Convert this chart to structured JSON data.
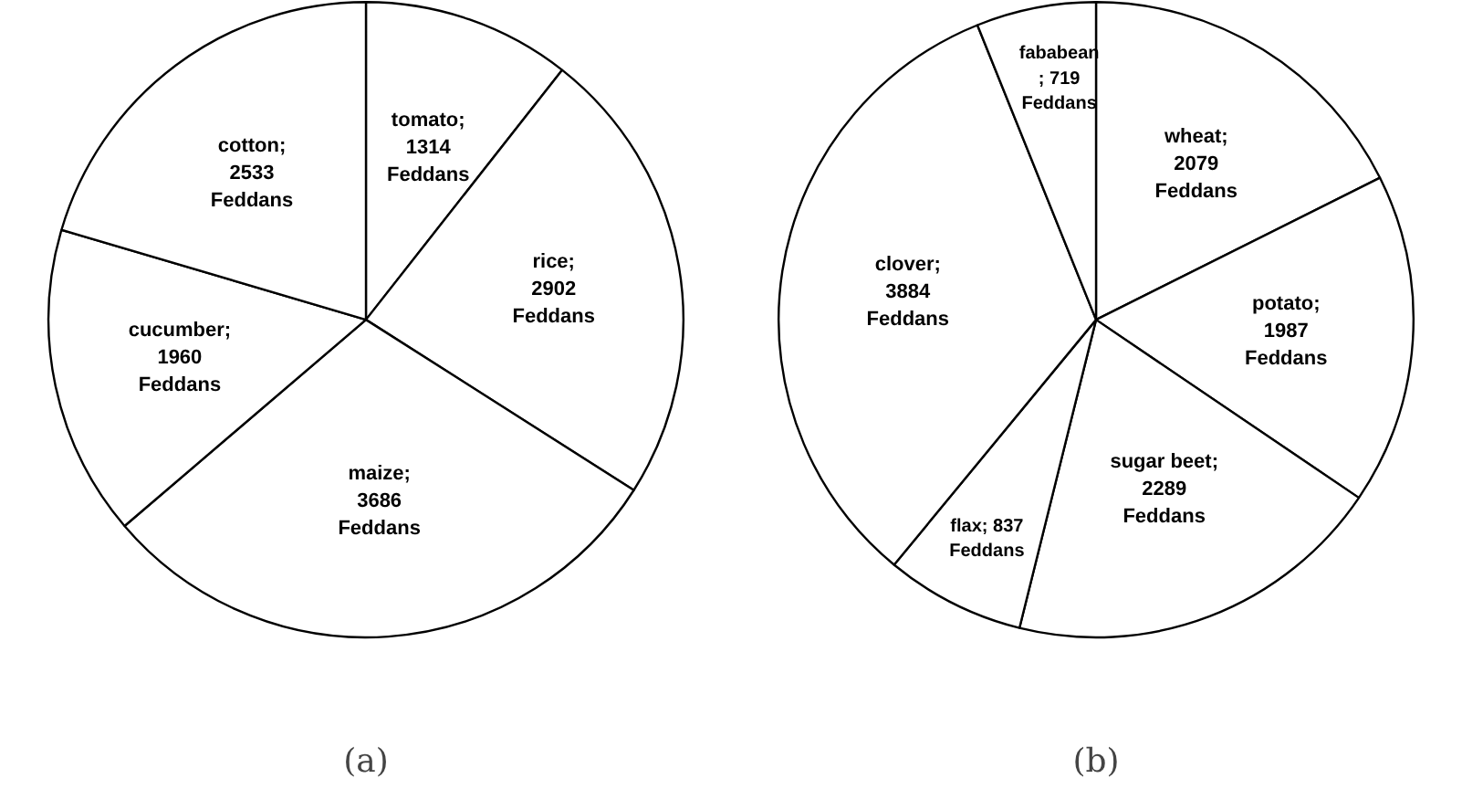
{
  "chart_data": [
    {
      "type": "pie",
      "title": "(a)",
      "categories": [
        "tomato",
        "rice",
        "maize",
        "cucumber",
        "cotton"
      ],
      "values": [
        1314,
        2902,
        3686,
        1960,
        2533
      ],
      "colors": [
        "#ffffff",
        "#ffffff",
        "#ffffff",
        "#ffffff",
        "#ffffff"
      ],
      "value_labels": [
        ";\n1314\nFeddans",
        ";\n2902\nFeddans",
        ";\n3686\nFeddans",
        ";\n1960\nFeddans",
        ";\n2533\nFeddans"
      ]
    },
    {
      "type": "pie",
      "title": "(b)",
      "categories": [
        "wheat",
        "potato",
        "sugar beet",
        "flax",
        "clover",
        "fababean"
      ],
      "values": [
        2079,
        1987,
        2289,
        837,
        3884,
        719
      ],
      "colors": [
        "#ffffff",
        "#ffffff",
        "#ffffff",
        "#ffffff",
        "#ffffff",
        "#ffffff"
      ],
      "value_labels": [
        ";\n2079\nFeddans",
        ";\n1987\nFeddans",
        ";\n2289\nFeddans",
        "; 837\nFeddans",
        ";\n3884\nFeddans",
        "\n; 719\nFeddans"
      ]
    }
  ]
}
